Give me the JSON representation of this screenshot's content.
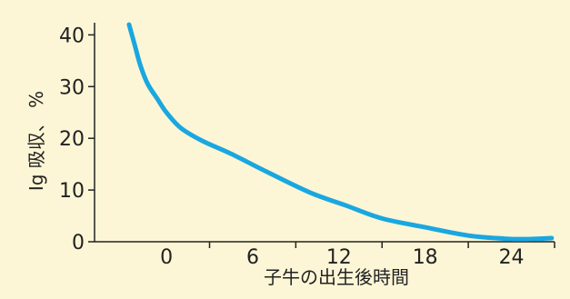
{
  "chart_data": {
    "type": "line",
    "xlabel": "子牛の出生後時間",
    "ylabel": "Ig 吸収、 %",
    "xlim": [
      -5,
      27
    ],
    "ylim": [
      0,
      42
    ],
    "x_ticks": [
      0,
      6,
      12,
      18,
      24
    ],
    "y_ticks": [
      0,
      10,
      20,
      30,
      40
    ],
    "grid": false,
    "series": [
      {
        "color": "#1aa7e0",
        "x": [
          -2.6,
          -2.2,
          -1.8,
          -1.3,
          -0.6,
          0.0,
          1.0,
          2.5,
          4.5,
          7.0,
          10.0,
          12.5,
          15.0,
          18.0,
          21.0,
          23.5,
          25.0,
          26.8
        ],
        "y": [
          42.0,
          38.0,
          34.0,
          30.5,
          27.5,
          25.0,
          22.0,
          19.5,
          17.0,
          13.5,
          9.5,
          7.0,
          4.5,
          2.8,
          1.2,
          0.6,
          0.5,
          0.7
        ]
      }
    ]
  },
  "colors": {
    "background": "#fdf6d6",
    "axis": "#222222",
    "line": "#1aa7e0"
  }
}
